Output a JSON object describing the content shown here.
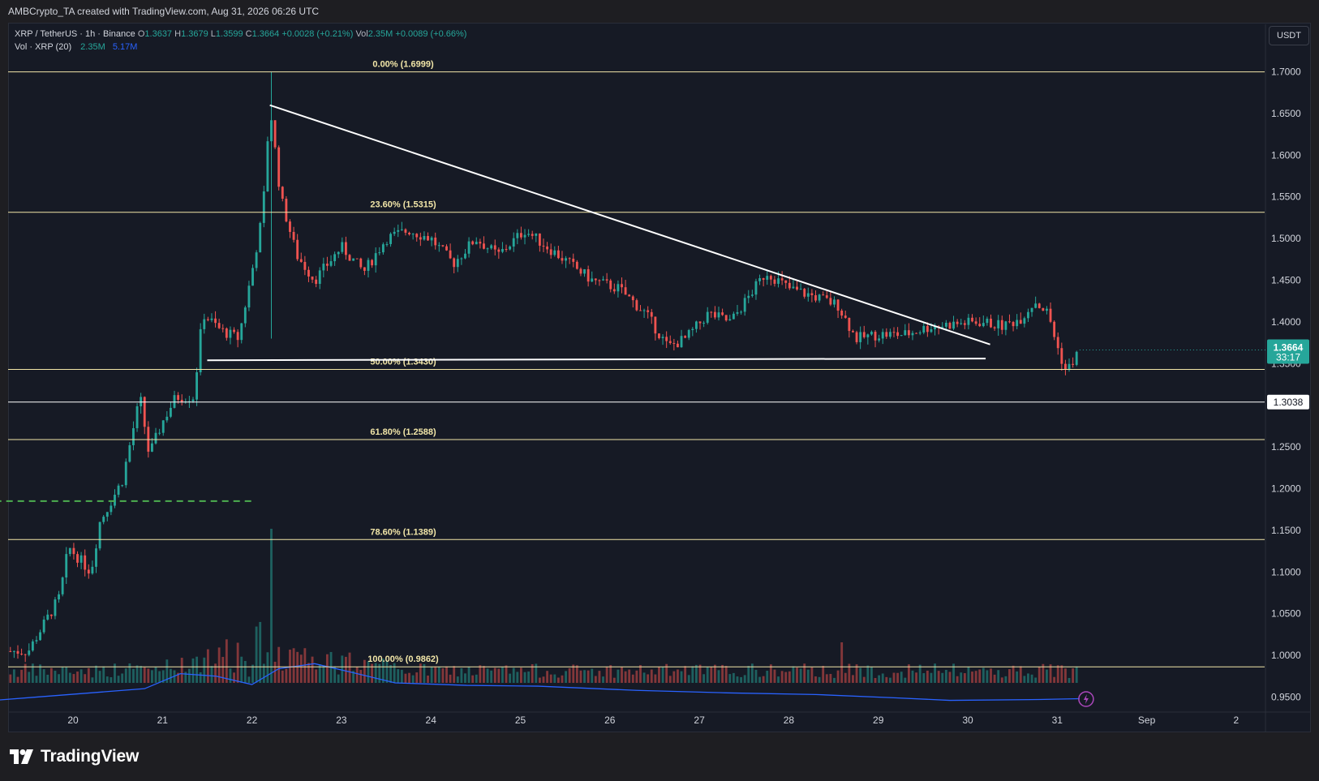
{
  "header": {
    "attribution": "AMBCrypto_TA created with TradingView.com, Aug 31, 2026 06:26 UTC"
  },
  "legend": {
    "symbol": "XRP / TetherUS · 1h · Binance",
    "open_label": "O",
    "open": "1.3637",
    "high_label": "H",
    "high": "1.3679",
    "low_label": "L",
    "low": "1.3599",
    "close_label": "C",
    "close": "1.3664",
    "change": "+0.0028 (+0.21%)",
    "vol_label": "Vol",
    "vol": "2.35M",
    "vol_change": "+0.0089 (+0.66%)",
    "vol_indicator": "Vol · XRP (20)",
    "vol_value": "2.35M",
    "vol_ma": "5.17M"
  },
  "currency_button": "USDT",
  "footer": {
    "brand": "TradingView"
  },
  "colors": {
    "up": "#26a69a",
    "down": "#ef5350",
    "volume_ma": "#2962ff",
    "fib": "#f2e6a8",
    "background": "#161a25",
    "accent_dashed": "#4caf50"
  },
  "icons": {
    "logo": "tradingview-logo-icon",
    "alert": "lightning-icon"
  },
  "chart_data": {
    "type": "candlestick",
    "title": "XRP / TetherUS · 1h · Binance",
    "ylim": [
      0.93,
      1.72
    ],
    "y_axis_ticks": [
      "1.7000",
      "1.6500",
      "1.6000",
      "1.5500",
      "1.5000",
      "1.4500",
      "1.4000",
      "1.3500",
      "1.3000",
      "1.2500",
      "1.2000",
      "1.1500",
      "1.1000",
      "1.0500",
      "1.0000",
      "0.9500"
    ],
    "x_axis_ticks": [
      "20",
      "21",
      "22",
      "23",
      "24",
      "25",
      "26",
      "27",
      "28",
      "29",
      "30",
      "31",
      "Sep",
      "2"
    ],
    "price_markers": [
      {
        "label": "1.3664",
        "sub": "33:17",
        "value": 1.3664,
        "type": "current"
      },
      {
        "label": "1.3038",
        "value": 1.3038,
        "type": "level"
      }
    ],
    "fib_levels": [
      {
        "label": "0.00% (1.6999)",
        "value": 1.6999
      },
      {
        "label": "23.60% (1.5315)",
        "value": 1.5315
      },
      {
        "label": "50.00% (1.3430)",
        "value": 1.343
      },
      {
        "label": "61.80% (1.2588)",
        "value": 1.2588
      },
      {
        "label": "78.60% (1.1389)",
        "value": 1.1389
      },
      {
        "label": "100.00% (0.9862)",
        "value": 0.9862
      }
    ],
    "horizontal_lines": [
      {
        "value": 1.3038
      }
    ],
    "dashed_line": {
      "value": 1.185,
      "x_from": 19.0,
      "x_to": 22.0
    },
    "trendlines": [
      {
        "from": [
          22.2,
          1.66
        ],
        "to": [
          30.25,
          1.373
        ]
      },
      {
        "from": [
          21.5,
          1.354
        ],
        "to": [
          30.2,
          1.356
        ]
      }
    ],
    "ohlc_keypoints": [
      [
        19.5,
        1.005
      ],
      [
        19.85,
        1.07
      ],
      [
        19.95,
        1.13
      ],
      [
        20.2,
        1.1
      ],
      [
        20.3,
        1.16
      ],
      [
        20.55,
        1.21
      ],
      [
        20.75,
        1.31
      ],
      [
        20.85,
        1.24
      ],
      [
        21.0,
        1.28
      ],
      [
        21.15,
        1.31
      ],
      [
        21.35,
        1.31
      ],
      [
        21.45,
        1.41
      ],
      [
        21.65,
        1.39
      ],
      [
        21.85,
        1.38
      ],
      [
        22.0,
        1.46
      ],
      [
        22.12,
        1.53
      ],
      [
        22.2,
        1.66
      ],
      [
        22.32,
        1.55
      ],
      [
        22.5,
        1.48
      ],
      [
        22.7,
        1.45
      ],
      [
        23.0,
        1.49
      ],
      [
        23.25,
        1.46
      ],
      [
        23.5,
        1.5
      ],
      [
        23.75,
        1.51
      ],
      [
        24.0,
        1.5
      ],
      [
        24.25,
        1.47
      ],
      [
        24.5,
        1.5
      ],
      [
        24.75,
        1.48
      ],
      [
        25.05,
        1.51
      ],
      [
        25.3,
        1.49
      ],
      [
        25.55,
        1.47
      ],
      [
        25.8,
        1.45
      ],
      [
        26.1,
        1.44
      ],
      [
        26.4,
        1.41
      ],
      [
        26.65,
        1.37
      ],
      [
        26.85,
        1.38
      ],
      [
        27.1,
        1.41
      ],
      [
        27.35,
        1.4
      ],
      [
        27.55,
        1.43
      ],
      [
        27.75,
        1.46
      ],
      [
        28.0,
        1.44
      ],
      [
        28.3,
        1.43
      ],
      [
        28.55,
        1.42
      ],
      [
        28.75,
        1.38
      ],
      [
        29.0,
        1.385
      ],
      [
        29.3,
        1.385
      ],
      [
        29.6,
        1.395
      ],
      [
        29.9,
        1.398
      ],
      [
        30.15,
        1.4
      ],
      [
        30.4,
        1.395
      ],
      [
        30.6,
        1.405
      ],
      [
        30.75,
        1.425
      ],
      [
        30.9,
        1.41
      ],
      [
        31.0,
        1.37
      ],
      [
        31.1,
        1.34
      ],
      [
        31.25,
        1.366
      ]
    ],
    "volume_ma_keypoints": [
      [
        19.0,
        0.945
      ],
      [
        19.6,
        0.95
      ],
      [
        20.2,
        0.955
      ],
      [
        20.8,
        0.96
      ],
      [
        21.2,
        0.978
      ],
      [
        21.6,
        0.975
      ],
      [
        22.0,
        0.965
      ],
      [
        22.3,
        0.984
      ],
      [
        22.7,
        0.99
      ],
      [
        23.1,
        0.98
      ],
      [
        23.6,
        0.967
      ],
      [
        24.4,
        0.964
      ],
      [
        25.2,
        0.963
      ],
      [
        26.3,
        0.958
      ],
      [
        27.3,
        0.955
      ],
      [
        28.3,
        0.953
      ],
      [
        29.2,
        0.949
      ],
      [
        29.8,
        0.946
      ],
      [
        30.8,
        0.947
      ],
      [
        31.25,
        0.948
      ]
    ]
  }
}
